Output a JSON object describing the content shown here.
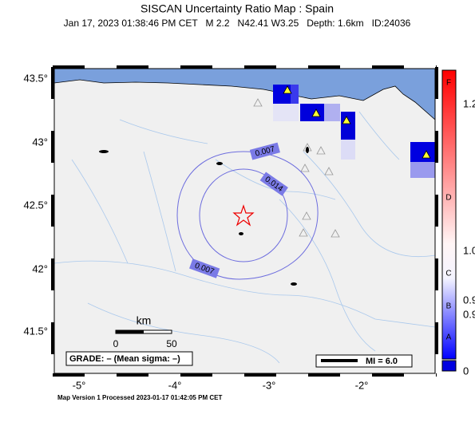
{
  "header": {
    "title": "SISCAN Uncertainty Ratio Map : Spain",
    "subtitle": "Jan 17, 2023 01:38:46 PM CET   M 2.2   N42.41 W3.25   Depth: 1.6km   ID:24036"
  },
  "map": {
    "lat_labels": [
      "43.5°",
      "43°",
      "42.5°",
      "42°",
      "41.5°"
    ],
    "lon_labels": [
      "-5°",
      "-4°",
      "-3°",
      "-2°"
    ],
    "contour_labels": [
      "0.007",
      "0.014",
      "0.007"
    ],
    "scale_bar": {
      "unit": "km",
      "labels": [
        "0",
        "50"
      ]
    },
    "grade": "GRADE: – (Mean sigma: –)",
    "legend": "MI = 6.0"
  },
  "colorbar": {
    "letters": [
      "F",
      "D",
      "C",
      "B",
      "A"
    ],
    "numbers": [
      "1.2",
      "1.0",
      "0.9",
      "0.9",
      "0"
    ]
  },
  "footer": "Map Version 1 Processed 2023-01-17 01:42:05 PM CET"
}
